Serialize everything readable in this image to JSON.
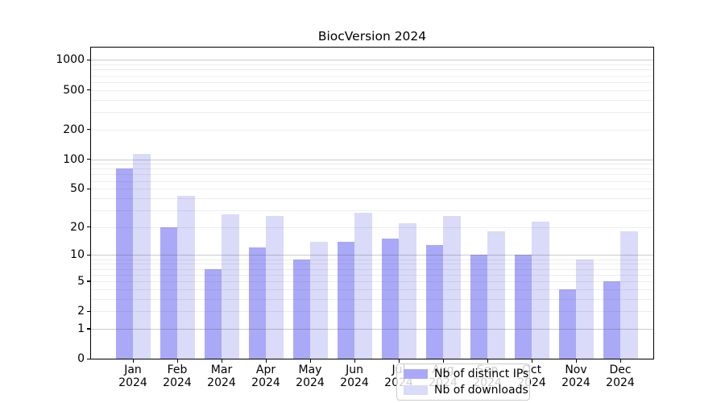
{
  "figure": {
    "title": "BiocVersion 2024"
  },
  "chart_data": {
    "type": "bar",
    "title": "BiocVersion 2024",
    "categories": [
      "Jan",
      "Feb",
      "Mar",
      "Apr",
      "May",
      "Jun",
      "Jul",
      "Aug",
      "Sep",
      "Oct",
      "Nov",
      "Dec"
    ],
    "year_label": "2024",
    "series": [
      {
        "name": "Nb of distinct IPs",
        "color": "#a9a9f7",
        "values": [
          81,
          20,
          7,
          12,
          9,
          14,
          15,
          13,
          10,
          10,
          4,
          5
        ]
      },
      {
        "name": "Nb of downloads",
        "color": "#dadaf9",
        "values": [
          113,
          42,
          27,
          26,
          14,
          28,
          22,
          26,
          18,
          23,
          9,
          18
        ]
      }
    ],
    "y_axis": {
      "scale": "log1p",
      "tick_labels": [
        "1000",
        "500",
        "200",
        "100",
        "50",
        "20",
        "10",
        "5",
        "2",
        "1",
        "0"
      ],
      "tick_values": [
        1000,
        500,
        200,
        100,
        50,
        20,
        10,
        5,
        2,
        1,
        0
      ],
      "major_gridlines": [
        1,
        10,
        100,
        1000
      ],
      "minor_gridlines": [
        2,
        3,
        4,
        5,
        6,
        7,
        8,
        9,
        20,
        30,
        40,
        50,
        60,
        70,
        80,
        90,
        200,
        300,
        400,
        500,
        600,
        700,
        800,
        900
      ],
      "range_bottom": 0
    },
    "legend_position": "lower center inside plot",
    "grid": "horizontal only"
  }
}
